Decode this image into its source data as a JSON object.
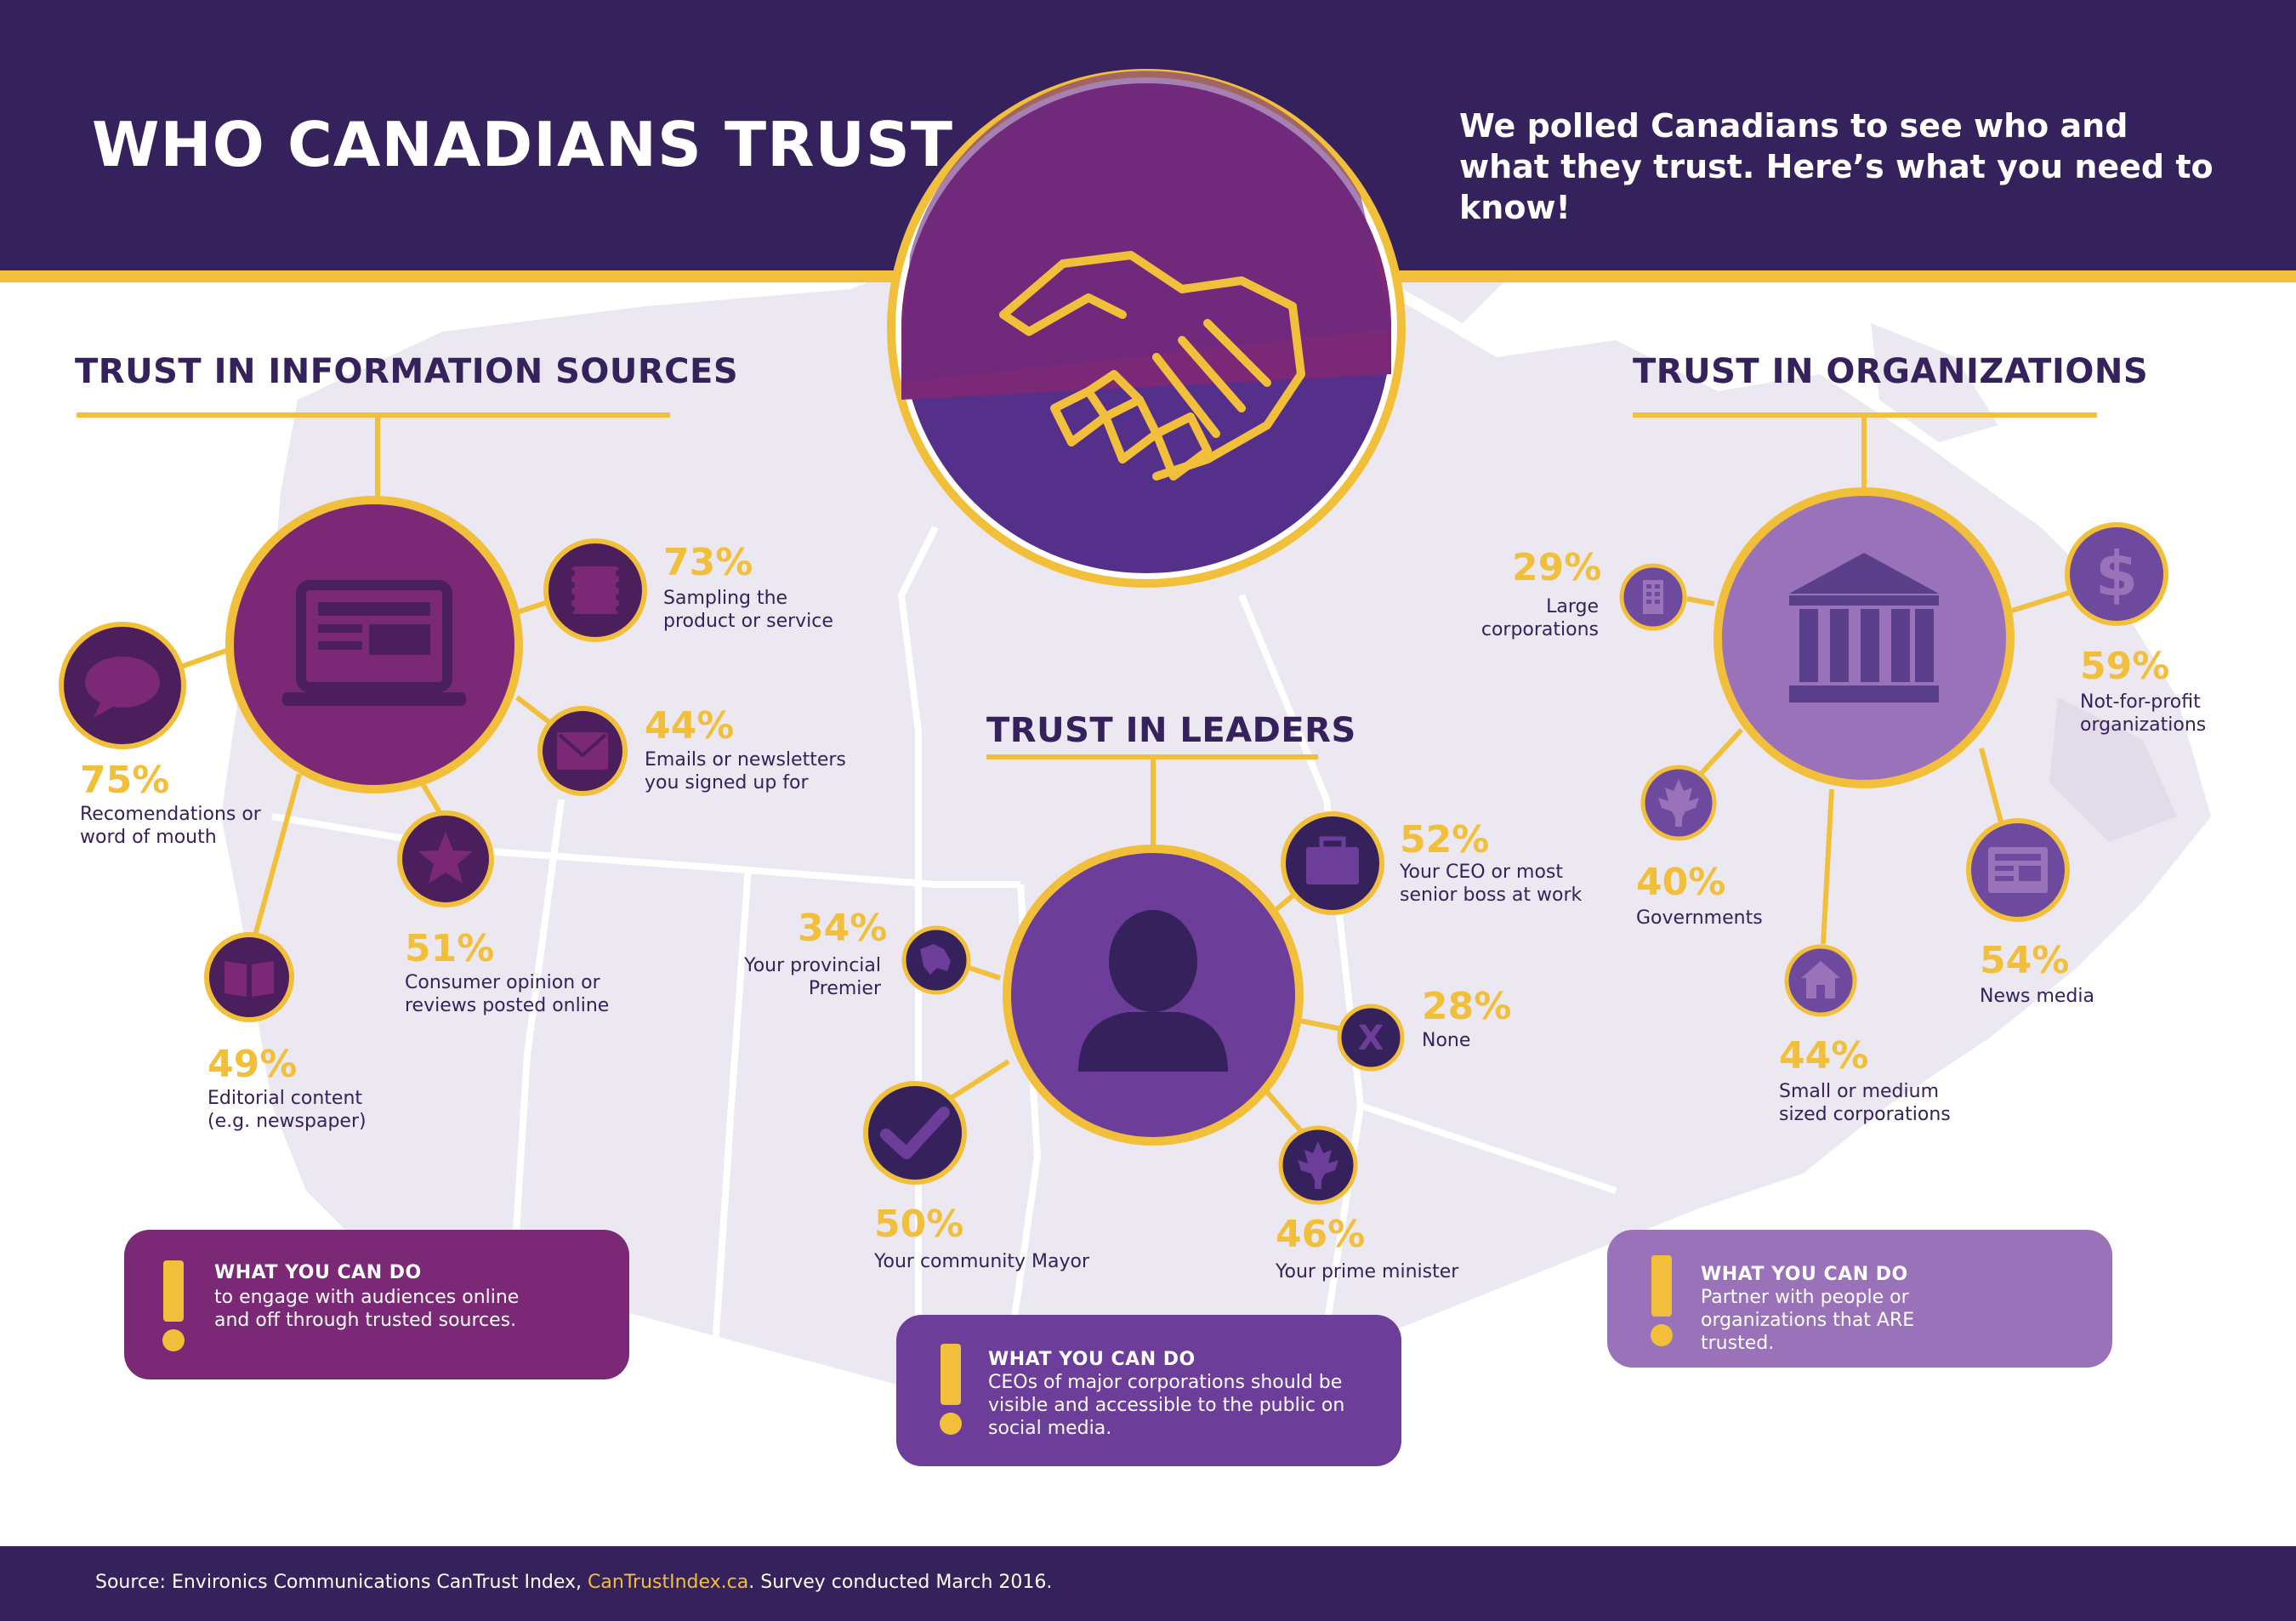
{
  "header": {
    "title": "WHO CANADIANS TRUST",
    "intro": "We polled Canadians to see who and what they trust. Here’s what you need to know!"
  },
  "colors": {
    "navy": "#35215c",
    "gold": "#f2bf3b",
    "plum": "#7b2877",
    "violet": "#6d3d9a",
    "lavender": "#9a72b9",
    "map": "#ece8f1"
  },
  "sources": {
    "title": "TRUST IN INFORMATION SOURCES",
    "hub_icon": "laptop-icon",
    "items": [
      {
        "pct": "73%",
        "label": "Sampling the product or service",
        "icon": "stamp-icon"
      },
      {
        "pct": "44%",
        "label": "Emails or newsletters you signed up for",
        "icon": "envelope-icon"
      },
      {
        "pct": "75%",
        "label": "Recomendations or word of mouth",
        "icon": "speech-bubble-icon"
      },
      {
        "pct": "51%",
        "label": "Consumer opinion or reviews posted online",
        "icon": "star-icon"
      },
      {
        "pct": "49%",
        "label": "Editorial content (e.g. newspaper)",
        "icon": "book-icon"
      }
    ],
    "callout": {
      "heading": "WHAT YOU CAN DO",
      "body": "to engage with audiences online and off through trusted sources."
    }
  },
  "leaders": {
    "title": "TRUST IN LEADERS",
    "hub_icon": "person-icon",
    "items": [
      {
        "pct": "52%",
        "label": "Your CEO or most senior boss at work",
        "icon": "briefcase-icon"
      },
      {
        "pct": "34%",
        "label": "Your provincial Premier",
        "icon": "province-map-icon"
      },
      {
        "pct": "28%",
        "label": "None",
        "icon": "x-icon"
      },
      {
        "pct": "50%",
        "label": "Your community Mayor",
        "icon": "checkmark-icon"
      },
      {
        "pct": "46%",
        "label": "Your prime minister",
        "icon": "maple-leaf-icon"
      }
    ],
    "callout": {
      "heading": "WHAT YOU CAN DO",
      "body": "CEOs of major corporations should be visible and accessible to the public on social media."
    }
  },
  "organizations": {
    "title": "TRUST IN ORGANIZATIONS",
    "hub_icon": "bank-building-icon",
    "items": [
      {
        "pct": "29%",
        "label": "Large corporations",
        "icon": "office-building-icon"
      },
      {
        "pct": "59%",
        "label": "Not-for-profit organizations",
        "icon": "dollar-icon"
      },
      {
        "pct": "40%",
        "label": "Governments",
        "icon": "maple-leaf-icon"
      },
      {
        "pct": "54%",
        "label": "News media",
        "icon": "newspaper-icon"
      },
      {
        "pct": "44%",
        "label": "Small or medium sized corporations",
        "icon": "house-icon"
      }
    ],
    "callout": {
      "heading": "WHAT YOU CAN DO",
      "body": "Partner with people or organizations that ARE trusted."
    }
  },
  "center_icon": "handshake-icon",
  "footer": {
    "prefix": "Source: Environics Communications CanTrust Index, ",
    "link": "CanTrustIndex.ca",
    "suffix": ". Survey conducted March 2016."
  }
}
